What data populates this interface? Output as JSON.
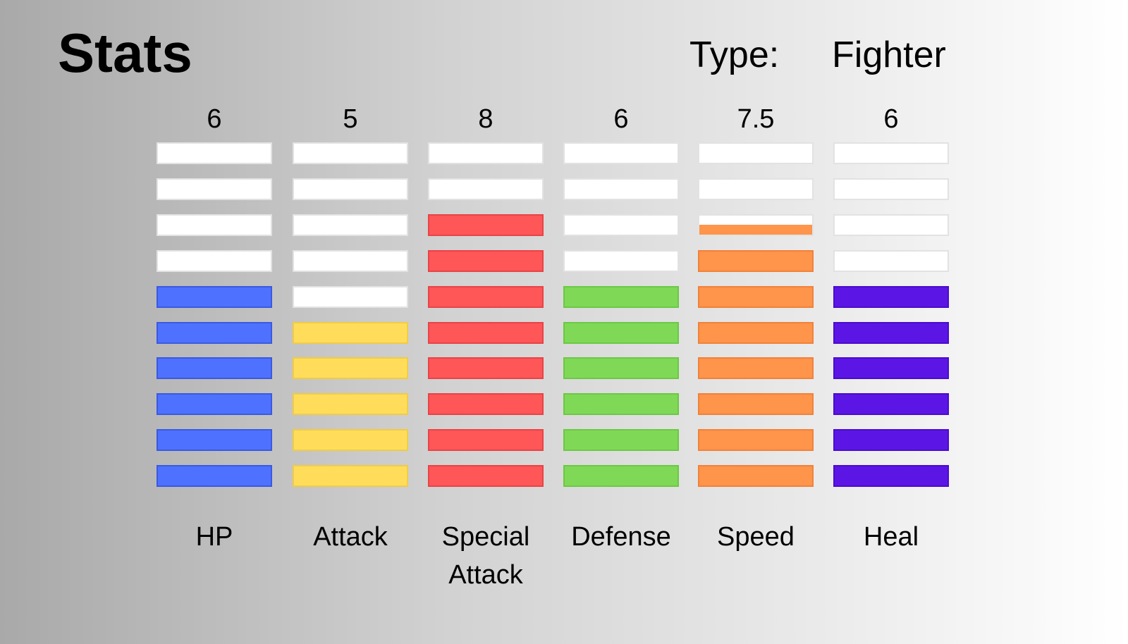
{
  "title": "Stats",
  "type_label": "Type:",
  "type_value": "Fighter",
  "max_segments": 10,
  "stats": [
    {
      "label": "HP",
      "value": "6",
      "amount": 6,
      "color": "#4e72ff",
      "border": "#3a5ae0"
    },
    {
      "label": "Attack",
      "value": "5",
      "amount": 5,
      "color": "#ffdd5a",
      "border": "#f0cc45"
    },
    {
      "label": "Special\nAttack",
      "value": "8",
      "amount": 8,
      "color": "#ff5658",
      "border": "#e84446"
    },
    {
      "label": "Defense",
      "value": "6",
      "amount": 6,
      "color": "#7fd957",
      "border": "#6cc845"
    },
    {
      "label": "Speed",
      "value": "7.5",
      "amount": 7.5,
      "color": "#ff944b",
      "border": "#f0823a"
    },
    {
      "label": "Heal",
      "value": "6",
      "amount": 6,
      "color": "#5b16e6",
      "border": "#4a0ccc"
    }
  ]
}
